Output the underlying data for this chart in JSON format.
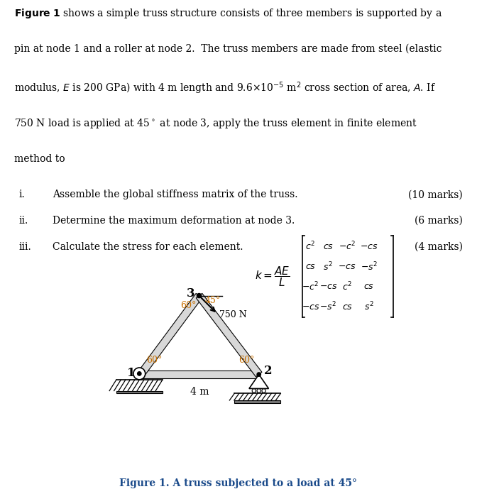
{
  "title_color": "#1a4a8a",
  "angle_label_color": "#c87000",
  "background": "#ffffff",
  "n1": [
    0.14,
    0.44
  ],
  "n2": [
    0.575,
    0.44
  ],
  "n3": [
    0.355,
    0.73
  ],
  "items": [
    {
      "roman": "i.",
      "text": "Assemble the global stiffness matrix of the truss.",
      "marks": "(10 marks)"
    },
    {
      "roman": "ii.",
      "text": "Determine the maximum deformation at node 3.",
      "marks": "(6 marks)"
    },
    {
      "roman": "iii.",
      "text": "Calculate the stress for each element.",
      "marks": "(4 marks)"
    }
  ]
}
